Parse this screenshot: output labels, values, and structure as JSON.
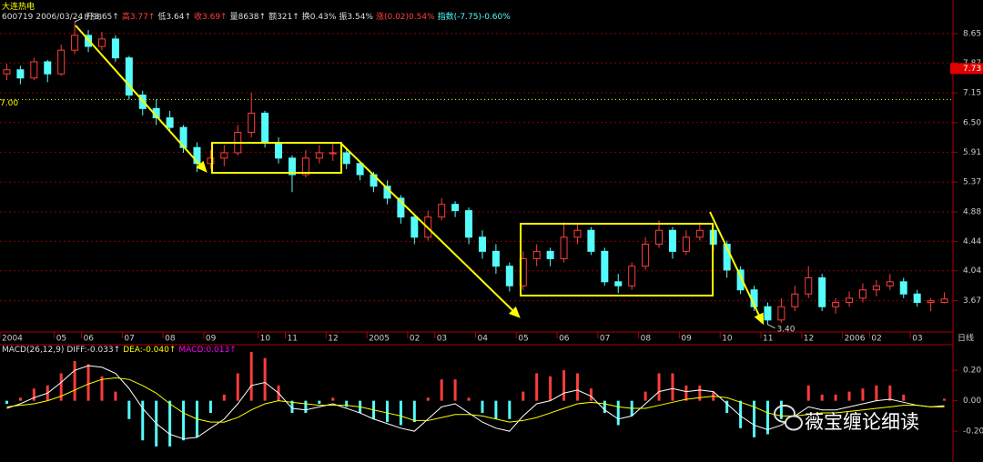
{
  "header": {
    "name": "大连热电",
    "info": [
      "600719",
      "2006/03/24",
      "开3.65↑",
      "高3.77↑",
      "低3.64↑",
      "收3.69↑",
      "量8638↑",
      "额321↑",
      "换0.43%",
      "振3.54%",
      "涨(0.02)0.54%",
      "指数(-7.75)-0.60%"
    ]
  },
  "watermark": "薇宝缠论细读",
  "chart_data": [
    {
      "type": "candlestick",
      "categories": [
        "2004",
        null,
        null,
        null,
        "05",
        null,
        "06",
        null,
        null,
        "07",
        null,
        null,
        "08",
        null,
        null,
        "09",
        null,
        null,
        null,
        "10",
        null,
        "11",
        null,
        null,
        "12",
        null,
        null,
        "2005",
        null,
        null,
        "02",
        null,
        "03",
        null,
        null,
        "04",
        null,
        null,
        "05",
        null,
        null,
        "06",
        null,
        null,
        "07",
        null,
        null,
        "08",
        null,
        null,
        "09",
        null,
        null,
        "10",
        null,
        null,
        "11",
        null,
        null,
        "12",
        null,
        null,
        "2006",
        null,
        "02",
        null,
        null,
        "03",
        null,
        null
      ],
      "period_label": "日线",
      "open": [
        7.6,
        7.7,
        7.5,
        7.9,
        7.6,
        8.2,
        8.6,
        8.3,
        8.5,
        8.0,
        7.1,
        6.8,
        6.6,
        6.4,
        6.0,
        5.7,
        5.8,
        5.9,
        6.3,
        6.7,
        6.1,
        5.8,
        5.5,
        5.8,
        5.9,
        5.9,
        5.7,
        5.5,
        5.3,
        5.1,
        4.8,
        4.5,
        4.8,
        5.0,
        4.9,
        4.5,
        4.3,
        4.1,
        3.85,
        4.2,
        4.3,
        4.2,
        4.5,
        4.6,
        4.3,
        3.9,
        3.85,
        4.1,
        4.4,
        4.6,
        4.3,
        4.5,
        4.6,
        4.4,
        4.05,
        3.8,
        3.6,
        3.45,
        3.6,
        3.75,
        3.95,
        3.6,
        3.65,
        3.7,
        3.8,
        3.85,
        3.9,
        3.75,
        3.65,
        3.65
      ],
      "high": [
        7.85,
        7.8,
        8.0,
        7.95,
        8.35,
        8.98,
        8.75,
        8.7,
        8.6,
        8.05,
        7.2,
        7.0,
        6.75,
        6.45,
        6.1,
        5.95,
        6.05,
        6.45,
        7.15,
        6.75,
        6.2,
        5.85,
        5.95,
        6.05,
        6.1,
        6.0,
        5.75,
        5.55,
        5.4,
        5.15,
        4.85,
        4.9,
        5.1,
        5.05,
        4.95,
        4.6,
        4.4,
        4.15,
        4.3,
        4.4,
        4.35,
        4.72,
        4.7,
        4.65,
        4.35,
        4.0,
        4.15,
        4.5,
        4.75,
        4.65,
        4.6,
        4.72,
        4.7,
        4.45,
        4.1,
        3.85,
        3.65,
        3.7,
        3.85,
        4.1,
        4.0,
        3.7,
        3.78,
        3.88,
        3.92,
        4.0,
        3.95,
        3.8,
        3.7,
        3.77
      ],
      "low": [
        7.45,
        7.35,
        7.45,
        7.4,
        7.55,
        8.1,
        8.15,
        8.2,
        7.9,
        7.0,
        6.65,
        6.45,
        6.3,
        5.9,
        5.55,
        5.6,
        5.65,
        5.85,
        6.2,
        6.0,
        5.7,
        5.2,
        5.45,
        5.7,
        5.75,
        5.6,
        5.4,
        5.2,
        5.0,
        4.7,
        4.4,
        4.45,
        4.75,
        4.8,
        4.4,
        4.2,
        4.0,
        3.78,
        3.8,
        4.1,
        4.1,
        4.15,
        4.4,
        4.25,
        3.85,
        3.76,
        3.8,
        4.05,
        4.35,
        4.2,
        4.25,
        4.45,
        4.3,
        3.95,
        3.75,
        3.55,
        3.4,
        3.42,
        3.55,
        3.7,
        3.55,
        3.52,
        3.6,
        3.65,
        3.72,
        3.8,
        3.7,
        3.6,
        3.55,
        3.64
      ],
      "close": [
        7.7,
        7.5,
        7.9,
        7.6,
        8.2,
        8.6,
        8.3,
        8.5,
        8.0,
        7.1,
        6.8,
        6.6,
        6.4,
        6.0,
        5.7,
        5.8,
        5.9,
        6.3,
        6.7,
        6.1,
        5.8,
        5.5,
        5.8,
        5.9,
        5.9,
        5.7,
        5.5,
        5.3,
        5.1,
        4.8,
        4.5,
        4.8,
        5.0,
        4.9,
        4.5,
        4.3,
        4.1,
        3.85,
        4.2,
        4.3,
        4.2,
        4.5,
        4.6,
        4.3,
        3.9,
        3.85,
        4.1,
        4.4,
        4.6,
        4.3,
        4.5,
        4.6,
        4.4,
        4.05,
        3.8,
        3.6,
        3.45,
        3.6,
        3.75,
        3.95,
        3.6,
        3.65,
        3.7,
        3.8,
        3.85,
        3.9,
        3.75,
        3.65,
        3.67,
        3.69
      ],
      "up_color": "#ff3c3c",
      "down_color": "#54fcfc",
      "log_scale": true,
      "ylim": [
        3.32,
        9.14
      ],
      "yticks": [
        8.65,
        7.87,
        7.15,
        {
          "value": 6.5,
          "label": "6.50"
        },
        5.91,
        5.37,
        4.88,
        4.44,
        4.04,
        3.67
      ],
      "grid": true,
      "reference_line": {
        "value": 7,
        "label": "7.00"
      },
      "price_marker": 7.73,
      "annotations": [
        8.98,
        {
          "value": 3.4,
          "label": "3.40"
        }
      ]
    },
    {
      "type": "macd",
      "title": "MACD(26,12,9)",
      "ylim": [
        -0.39,
        0.35
      ],
      "yticks": [
        {
          "value": 0.2,
          "label": "0.20"
        },
        {
          "value": 0,
          "label": "0.00"
        },
        {
          "value": -0.2,
          "label": "-0.20"
        }
      ],
      "series": [
        {
          "name": "DIFF:-0.033↑",
          "kind": "line",
          "color": "#ffffff",
          "values": [
            -0.05,
            -0.02,
            0.02,
            0.05,
            0.12,
            0.2,
            0.23,
            0.22,
            0.18,
            0.08,
            -0.05,
            -0.15,
            -0.22,
            -0.25,
            -0.24,
            -0.18,
            -0.12,
            -0.02,
            0.1,
            0.12,
            0.05,
            -0.05,
            -0.06,
            -0.04,
            -0.02,
            -0.05,
            -0.08,
            -0.12,
            -0.15,
            -0.18,
            -0.2,
            -0.12,
            -0.04,
            -0.02,
            -0.08,
            -0.14,
            -0.18,
            -0.2,
            -0.1,
            -0.02,
            0.0,
            0.05,
            0.07,
            0.03,
            -0.06,
            -0.12,
            -0.1,
            -0.02,
            0.06,
            0.08,
            0.06,
            0.07,
            0.06,
            -0.02,
            -0.1,
            -0.16,
            -0.19,
            -0.16,
            -0.1,
            -0.04,
            -0.06,
            -0.06,
            -0.04,
            -0.02,
            0.0,
            0.01,
            -0.01,
            -0.03,
            -0.04,
            -0.033
          ]
        },
        {
          "name": "DEA:-0.040↑",
          "kind": "line",
          "color": "#ffff00",
          "values": [
            -0.04,
            -0.03,
            -0.02,
            0.0,
            0.03,
            0.07,
            0.11,
            0.14,
            0.15,
            0.14,
            0.1,
            0.05,
            -0.02,
            -0.08,
            -0.12,
            -0.14,
            -0.14,
            -0.11,
            -0.06,
            -0.02,
            0.0,
            -0.01,
            -0.02,
            -0.03,
            -0.03,
            -0.03,
            -0.04,
            -0.06,
            -0.08,
            -0.1,
            -0.13,
            -0.13,
            -0.11,
            -0.09,
            -0.09,
            -0.1,
            -0.12,
            -0.14,
            -0.13,
            -0.11,
            -0.08,
            -0.05,
            -0.02,
            -0.01,
            -0.02,
            -0.04,
            -0.05,
            -0.05,
            -0.03,
            -0.01,
            0.01,
            0.02,
            0.03,
            0.02,
            -0.01,
            -0.04,
            -0.08,
            -0.1,
            -0.1,
            -0.09,
            -0.08,
            -0.08,
            -0.07,
            -0.06,
            -0.05,
            -0.04,
            -0.03,
            -0.03,
            -0.04,
            -0.04
          ]
        },
        {
          "name": "MACD:0.013↑",
          "kind": "bar",
          "color": "#ff00ff",
          "up_color": "#ff3c3c",
          "down_color": "#54fcfc",
          "values": [
            -0.02,
            0.02,
            0.08,
            0.1,
            0.18,
            0.26,
            0.24,
            0.16,
            0.06,
            -0.12,
            -0.26,
            -0.3,
            -0.3,
            -0.26,
            -0.24,
            -0.08,
            0.04,
            0.18,
            0.32,
            0.28,
            0.1,
            -0.08,
            -0.08,
            -0.02,
            0.02,
            -0.04,
            -0.08,
            -0.12,
            -0.14,
            -0.16,
            -0.14,
            0.02,
            0.14,
            0.14,
            0.02,
            -0.08,
            -0.12,
            -0.12,
            0.06,
            0.18,
            0.16,
            0.2,
            0.18,
            0.08,
            -0.08,
            -0.16,
            -0.1,
            0.06,
            0.18,
            0.18,
            0.1,
            0.1,
            0.06,
            -0.08,
            -0.18,
            -0.24,
            -0.22,
            -0.12,
            0.0,
            0.1,
            0.04,
            0.04,
            0.06,
            0.08,
            0.1,
            0.1,
            0.04,
            0.0,
            0.0,
            0.013
          ]
        }
      ]
    }
  ]
}
